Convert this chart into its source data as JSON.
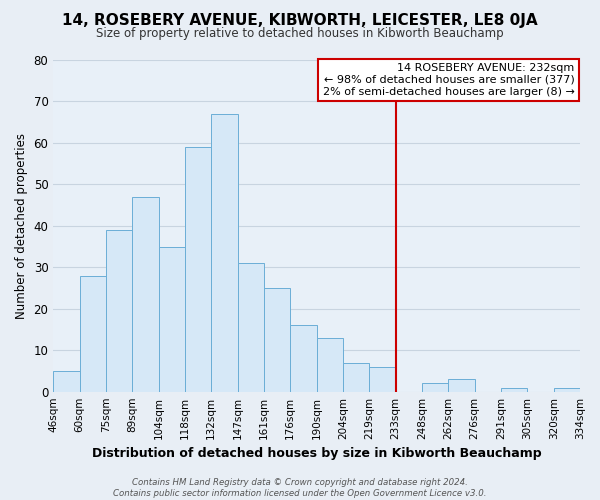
{
  "title": "14, ROSEBERY AVENUE, KIBWORTH, LEICESTER, LE8 0JA",
  "subtitle": "Size of property relative to detached houses in Kibworth Beauchamp",
  "xlabel": "Distribution of detached houses by size in Kibworth Beauchamp",
  "ylabel": "Number of detached properties",
  "bin_labels": [
    "46sqm",
    "60sqm",
    "75sqm",
    "89sqm",
    "104sqm",
    "118sqm",
    "132sqm",
    "147sqm",
    "161sqm",
    "176sqm",
    "190sqm",
    "204sqm",
    "219sqm",
    "233sqm",
    "248sqm",
    "262sqm",
    "276sqm",
    "291sqm",
    "305sqm",
    "320sqm",
    "334sqm"
  ],
  "bar_values": [
    5,
    28,
    39,
    47,
    35,
    59,
    67,
    31,
    25,
    16,
    13,
    7,
    6,
    0,
    2,
    3,
    0,
    1,
    0,
    1
  ],
  "bar_color": "#d6e8f7",
  "bar_edge_color": "#6baed6",
  "vline_color": "#cc0000",
  "ylim": [
    0,
    80
  ],
  "yticks": [
    0,
    10,
    20,
    30,
    40,
    50,
    60,
    70,
    80
  ],
  "annotation_title": "14 ROSEBERY AVENUE: 232sqm",
  "annotation_line1": "← 98% of detached houses are smaller (377)",
  "annotation_line2": "2% of semi-detached houses are larger (8) →",
  "annotation_box_color": "#ffffff",
  "annotation_border_color": "#cc0000",
  "footer_line1": "Contains HM Land Registry data © Crown copyright and database right 2024.",
  "footer_line2": "Contains public sector information licensed under the Open Government Licence v3.0.",
  "bg_color": "#e8eef5",
  "plot_bg_color": "#e8f0f8",
  "grid_color": "#c8d4e0"
}
